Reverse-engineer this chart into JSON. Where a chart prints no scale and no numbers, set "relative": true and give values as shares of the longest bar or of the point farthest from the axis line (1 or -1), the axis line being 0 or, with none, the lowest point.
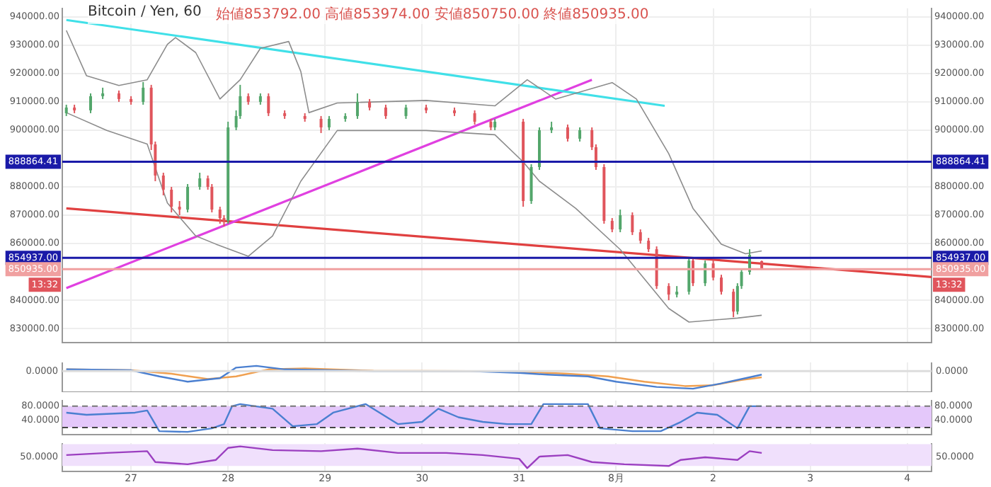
{
  "chart_data": [
    {
      "type": "candlestick",
      "title": "Bitcoin / Yen, 60",
      "subtitle": "始値853792.00 高値853974.00 安値850750.00 終値850935.00",
      "x": [
        "--07-26T08:00",
        "--07-26T10:00",
        "--07-26T14:00",
        "--07-26T17:00",
        "--07-26T21:00",
        "--07-27T00:00",
        "--07-27T03:00",
        "--07-27T05:00",
        "--07-27T06:00",
        "--07-27T08:00",
        "--07-27T10:00",
        "--07-27T12:00",
        "--07-27T14:00",
        "--07-27T17:00",
        "--07-27T19:00",
        "--07-27T20:00",
        "--07-27T22:00",
        "--07-27T23:00",
        "--07-28T00:00",
        "--07-28T02:00",
        "--07-28T03:00",
        "--07-28T05:00",
        "--07-28T08:00",
        "--07-28T10:00",
        "--07-28T14:00",
        "--07-28T19:00",
        "--07-28T23:00",
        "--07-29T01:00",
        "--07-29T05:00",
        "--07-29T08:00",
        "--07-29T11:00",
        "--07-29T15:00",
        "--07-29T20:00",
        "--07-30T01:00",
        "--07-30T08:00",
        "--07-30T13:00",
        "--07-30T17:00",
        "--07-30T18:00",
        "--07-31T01:00",
        "--07-31T03:00",
        "--07-31T05:00",
        "--07-31T08:00",
        "--07-31T12:00",
        "--07-31T15:00",
        "--07-31T18:00",
        "--07-31T19:00",
        "--07-31T21:00",
        "--07-31T23:00",
        "--08-01T01:00",
        "--08-01T04:00",
        "--08-01T06:00",
        "--08-01T08:00",
        "--08-01T10:00",
        "--08-01T13:00",
        "--08-01T15:00",
        "--08-01T18:00",
        "--08-01T19:00",
        "--08-01T22:00",
        "--08-02T00:00",
        "--08-02T02:00",
        "--08-02T05:00",
        "--08-02T06:00",
        "--08-02T07:00",
        "--08-02T09:00",
        "--08-02T12:00"
      ],
      "ohlc": [
        [
          906000,
          909000,
          905000,
          908000
        ],
        [
          908000,
          909000,
          906000,
          907000
        ],
        [
          907000,
          913000,
          906000,
          912000
        ],
        [
          912000,
          915000,
          911000,
          913000
        ],
        [
          913000,
          914000,
          910000,
          911000
        ],
        [
          911000,
          912000,
          909000,
          910000
        ],
        [
          910000,
          917000,
          909000,
          915000
        ],
        [
          915000,
          916000,
          893000,
          895000
        ],
        [
          895000,
          896000,
          882000,
          884000
        ],
        [
          884000,
          885000,
          877000,
          879000
        ],
        [
          879000,
          880000,
          871000,
          873000
        ],
        [
          873000,
          875000,
          870000,
          872000
        ],
        [
          872000,
          881000,
          871000,
          880000
        ],
        [
          880000,
          885000,
          879000,
          883000
        ],
        [
          883000,
          884000,
          879000,
          880000
        ],
        [
          880000,
          881000,
          871000,
          872000
        ],
        [
          872000,
          873000,
          867000,
          869000
        ],
        [
          869000,
          870000,
          866000,
          868000
        ],
        [
          868000,
          903000,
          867000,
          901000
        ],
        [
          901000,
          907000,
          900000,
          905000
        ],
        [
          905000,
          916000,
          904000,
          912000
        ],
        [
          912000,
          913000,
          909000,
          910000
        ],
        [
          910000,
          913000,
          909000,
          912000
        ],
        [
          912000,
          913000,
          905000,
          906000
        ],
        [
          906000,
          907000,
          904000,
          905000
        ],
        [
          905000,
          906000,
          903000,
          904000
        ],
        [
          904000,
          905000,
          899000,
          901000
        ],
        [
          901000,
          905000,
          900000,
          904000
        ],
        [
          904000,
          906000,
          903000,
          905000
        ],
        [
          905000,
          913000,
          904000,
          910000
        ],
        [
          910000,
          911000,
          907000,
          908000
        ],
        [
          908000,
          909000,
          904000,
          905000
        ],
        [
          905000,
          909000,
          904000,
          908000
        ],
        [
          908000,
          909000,
          906000,
          907000
        ],
        [
          907000,
          908000,
          905000,
          906000
        ],
        [
          906000,
          907000,
          902000,
          903000
        ],
        [
          903000,
          904000,
          900000,
          901000
        ],
        [
          901000,
          904000,
          900000,
          903000
        ],
        [
          903000,
          904000,
          873000,
          875000
        ],
        [
          875000,
          888000,
          874000,
          887000
        ],
        [
          887000,
          901000,
          886000,
          900000
        ],
        [
          900000,
          903000,
          899000,
          901000
        ],
        [
          901000,
          902000,
          896000,
          897000
        ],
        [
          897000,
          901000,
          896000,
          900000
        ],
        [
          900000,
          901000,
          893000,
          894000
        ],
        [
          894000,
          895000,
          886000,
          887000
        ],
        [
          887000,
          888000,
          867000,
          868000
        ],
        [
          868000,
          869000,
          864000,
          865000
        ],
        [
          865000,
          872000,
          864000,
          870000
        ],
        [
          870000,
          871000,
          863000,
          864000
        ],
        [
          864000,
          865000,
          860000,
          861000
        ],
        [
          861000,
          862000,
          857000,
          858000
        ],
        [
          858000,
          859000,
          844000,
          845000
        ],
        [
          845000,
          846000,
          840000,
          842000
        ],
        [
          842000,
          845000,
          841000,
          843000
        ],
        [
          843000,
          855000,
          842000,
          854000
        ],
        [
          854000,
          855000,
          845000,
          846000
        ],
        [
          846000,
          854000,
          845000,
          853000
        ],
        [
          853000,
          854000,
          847000,
          848000
        ],
        [
          848000,
          849000,
          842000,
          843000
        ],
        [
          843000,
          844000,
          834000,
          836000
        ],
        [
          836000,
          846000,
          835000,
          845000
        ],
        [
          845000,
          851000,
          844000,
          850000
        ],
        [
          850000,
          858000,
          849000,
          856000
        ],
        [
          853792,
          853974,
          850750,
          850935
        ]
      ],
      "series": [
        {
          "type": "line",
          "color": "#8c8c8c",
          "x": [
            "--07-26T08:00",
            "--07-26T13:00",
            "--07-26T21:00",
            "--07-27T04:00",
            "--07-27T09:00",
            "--07-27T11:00",
            "--07-27T16:00",
            "--07-27T22:00",
            "--07-28T03:00",
            "--07-28T08:00",
            "--07-28T15:00",
            "--07-28T18:00",
            "--07-28T20:00",
            "--07-29T03:00",
            "--07-30T01:00",
            "--07-30T18:00",
            "--07-31T02:00",
            "--07-31T09:00",
            "--07-31T23:00",
            "--08-01T05:00",
            "--08-01T13:00",
            "--08-01T19:00",
            "--08-02T02:00",
            "--08-02T08:00",
            "--08-02T12:00"
          ],
          "values": [
            935200,
            919200,
            915800,
            917800,
            930300,
            932700,
            927400,
            911000,
            917800,
            928900,
            931300,
            920700,
            906200,
            909600,
            910500,
            908600,
            917800,
            911000,
            916800,
            911000,
            891700,
            872400,
            859800,
            856400,
            857400
          ]
        },
        {
          "type": "line",
          "color": "#8c8c8c",
          "x": [
            "--07-26T08:00",
            "--07-26T18:00",
            "--07-27T04:00",
            "--07-27T09:00",
            "--07-27T16:00",
            "--07-27T21:00",
            "--07-28T05:00",
            "--07-28T11:00",
            "--07-28T18:00",
            "--07-29T03:00",
            "--07-30T01:00",
            "--07-30T18:00",
            "--07-31T01:00",
            "--07-31T05:00",
            "--07-31T14:00",
            "--08-01T01:00",
            "--08-01T13:00",
            "--08-01T18:00",
            "--08-02T06:00",
            "--08-02T12:00"
          ],
          "values": [
            906200,
            899900,
            895100,
            874300,
            862700,
            859800,
            855500,
            862700,
            882000,
            899900,
            899900,
            898400,
            888800,
            882000,
            872400,
            857900,
            837100,
            832300,
            833700,
            834700
          ]
        },
        {
          "type": "line",
          "color": "#40e0e8",
          "x": [
            "--07-26T08:00",
            "--08-01T12:00"
          ],
          "values": [
            938900,
            908600
          ]
        },
        {
          "type": "line",
          "color": "#e040e0",
          "x": [
            "--07-26T08:00",
            "--07-31T18:00"
          ],
          "values": [
            844300,
            917800
          ]
        },
        {
          "type": "line",
          "color": "#e04040",
          "x": [
            "--07-26T08:00",
            "--08-04T06:00"
          ],
          "values": [
            872400,
            848200
          ]
        }
      ],
      "xlim": [
        "--07-26T07:00",
        "--08-04T06:00"
      ],
      "xticks": [
        {
          "value": "--07-27",
          "label": "27"
        },
        {
          "value": "--07-28",
          "label": "28"
        },
        {
          "value": "--07-29",
          "label": "29"
        },
        {
          "value": "--07-30",
          "label": "30"
        },
        {
          "value": "--07-31",
          "label": "31"
        },
        {
          "value": "--08-01",
          "label": "8月"
        },
        {
          "value": "--08-02",
          "label": "2"
        },
        {
          "value": "--08-03",
          "label": "3"
        },
        {
          "value": "--08-04",
          "label": "4"
        }
      ],
      "ylim": [
        825000,
        943000
      ],
      "yticks": [
        {
          "value": 830000,
          "label": "830000.00"
        },
        {
          "value": 840000,
          "label": "840000.00"
        },
        {
          "value": 860000,
          "label": "860000.00"
        },
        {
          "value": 870000,
          "label": "870000.00"
        },
        {
          "value": 880000,
          "label": "880000.00"
        },
        {
          "value": 900000,
          "label": "900000.00"
        },
        {
          "value": 910000,
          "label": "910000.00"
        },
        {
          "value": 920000,
          "label": "920000.00"
        },
        {
          "value": 930000,
          "label": "930000.00"
        },
        {
          "value": 940000,
          "label": "940000.00"
        }
      ],
      "y2lim": [
        825000,
        943000
      ],
      "y2ticks": [
        {
          "value": 830000,
          "label": "830000.00"
        },
        {
          "value": 840000,
          "label": "840000.00"
        },
        {
          "value": 860000,
          "label": "860000.00"
        },
        {
          "value": 870000,
          "label": "870000.00"
        },
        {
          "value": 880000,
          "label": "880000.00"
        },
        {
          "value": 900000,
          "label": "900000.00"
        },
        {
          "value": 910000,
          "label": "910000.00"
        },
        {
          "value": 920000,
          "label": "920000.00"
        },
        {
          "value": 930000,
          "label": "930000.00"
        },
        {
          "value": 940000,
          "label": "940000.00"
        }
      ],
      "ref_lines": [
        {
          "axis": "y",
          "value": 888864.41,
          "label": "888864.41",
          "color": "#1a1aa8"
        },
        {
          "axis": "y",
          "value": 854937.0,
          "label": "854937.00",
          "color": "#1a1aa8"
        },
        {
          "axis": "y",
          "value": 850935.0,
          "label": "850935.00",
          "color": "#f0a0a0"
        }
      ],
      "annotations": [
        "13:32"
      ],
      "grid": true,
      "tick_labels": "y"
    },
    {
      "type": "line",
      "relative": true,
      "series": [
        {
          "color": "#4a7fd0",
          "x": [
            "--07-26T08:00",
            "--07-27T00:00",
            "--07-27T07:00",
            "--07-27T14:00",
            "--07-27T22:00",
            "--07-28T02:00",
            "--07-28T07:00",
            "--07-28T14:00",
            "--07-29T12:00",
            "--07-30T12:00",
            "--07-31T00:00",
            "--07-31T07:00",
            "--07-31T17:00",
            "--08-01T00:00",
            "--08-01T10:00",
            "--08-01T19:00",
            "--08-02T02:00",
            "--08-02T10:00",
            "--08-02T12:00"
          ],
          "values": [
            0.1,
            0.05,
            -0.3,
            -0.6,
            -0.4,
            0.2,
            0.3,
            0.1,
            0,
            0,
            -0.1,
            -0.2,
            -0.3,
            -0.6,
            -0.9,
            -1,
            -0.7,
            -0.3,
            -0.2
          ]
        },
        {
          "color": "#f0a050",
          "x": [
            "--07-26T08:00",
            "--07-27T00:00",
            "--07-27T10:00",
            "--07-27T19:00",
            "--07-28T02:00",
            "--07-28T10:00",
            "--07-28T19:00",
            "--07-29T12:00",
            "--07-30T12:00",
            "--07-31T02:00",
            "--07-31T12:00",
            "--07-31T22:00",
            "--08-01T07:00",
            "--08-01T17:00",
            "--08-02T00:00",
            "--08-02T07:00",
            "--08-02T12:00"
          ],
          "values": [
            0.1,
            0.05,
            -0.15,
            -0.45,
            -0.3,
            0.1,
            0.15,
            0.02,
            0,
            -0.05,
            -0.15,
            -0.3,
            -0.6,
            -0.85,
            -0.8,
            -0.5,
            -0.35
          ]
        }
      ],
      "xlim": [
        "--07-26T07:00",
        "--08-04T06:00"
      ],
      "xticks": [
        {
          "value": "--07-27",
          "label": "27"
        },
        {
          "value": "--07-28",
          "label": "28"
        },
        {
          "value": "--07-29",
          "label": "29"
        },
        {
          "value": "--07-30",
          "label": "30"
        },
        {
          "value": "--07-31",
          "label": "31"
        },
        {
          "value": "--08-01",
          "label": "8月"
        },
        {
          "value": "--08-02",
          "label": "2"
        },
        {
          "value": "--08-03",
          "label": "3"
        },
        {
          "value": "--08-04",
          "label": "4"
        }
      ],
      "ref_lines": [
        {
          "axis": "y",
          "value": 0,
          "label": "0.0000",
          "color": "#dddddd"
        }
      ],
      "grid": "x",
      "tick_labels": false
    },
    {
      "type": "line",
      "series": [
        {
          "color": "#4a7fd0",
          "x": [
            "--07-26T08:00",
            "--07-26T13:00",
            "--07-26T19:00",
            "--07-27T01:00",
            "--07-27T04:00",
            "--07-27T07:00",
            "--07-27T14:00",
            "--07-27T20:00",
            "--07-27T23:00",
            "--07-28T01:00",
            "--07-28T03:00",
            "--07-28T11:00",
            "--07-28T16:00",
            "--07-28T22:00",
            "--07-29T02:00",
            "--07-29T10:00",
            "--07-29T18:00",
            "--07-30T00:00",
            "--07-30T04:00",
            "--07-30T09:00",
            "--07-30T15:00",
            "--07-30T21:00",
            "--07-31T03:00",
            "--07-31T06:00",
            "--07-31T12:00",
            "--07-31T17:00",
            "--07-31T20:00",
            "--08-01T04:00",
            "--08-01T11:00",
            "--08-01T16:00",
            "--08-01T20:00",
            "--08-02T01:00",
            "--08-02T06:00",
            "--08-02T09:00",
            "--08-02T12:00"
          ],
          "values": [
            62,
            56,
            59,
            62,
            68,
            10,
            8,
            18,
            30,
            80,
            86,
            73,
            24,
            30,
            62,
            86,
            30,
            36,
            73,
            49,
            36,
            30,
            30,
            86,
            86,
            86,
            18,
            10,
            10,
            36,
            62,
            56,
            18,
            80,
            80
          ]
        }
      ],
      "xlim": [
        "--07-26T07:00",
        "--08-04T06:00"
      ],
      "xticks": [
        {
          "value": "--07-27",
          "label": "27"
        },
        {
          "value": "--07-28",
          "label": "28"
        },
        {
          "value": "--07-29",
          "label": "29"
        },
        {
          "value": "--07-30",
          "label": "30"
        },
        {
          "value": "--07-31",
          "label": "31"
        },
        {
          "value": "--08-01",
          "label": "8月"
        },
        {
          "value": "--08-02",
          "label": "2"
        },
        {
          "value": "--08-03",
          "label": "3"
        },
        {
          "value": "--08-04",
          "label": "4"
        }
      ],
      "ylim": [
        0,
        96
      ],
      "yticks": [
        {
          "value": 40,
          "label": "40.0000"
        },
        {
          "value": 80,
          "label": "80.0000"
        }
      ],
      "y2lim": [
        0,
        96
      ],
      "y2ticks": [
        {
          "value": 40,
          "label": "40.0000"
        },
        {
          "value": 80,
          "label": "80.0000"
        }
      ],
      "bands": [
        {
          "axis": "y",
          "from": 20,
          "to": 80,
          "color": "#e4c8fa"
        }
      ],
      "ref_lines": [
        {
          "axis": "y",
          "value": 80,
          "color": "#777777",
          "line_style": "dashed"
        },
        {
          "axis": "y",
          "value": 20,
          "color": "#444444",
          "line_style": "dashed"
        }
      ],
      "grid": "x",
      "tick_labels": "y"
    },
    {
      "type": "line",
      "relative": true,
      "series": [
        {
          "color": "#9b3fc0",
          "x": [
            "--07-26T08:00",
            "--07-26T18:00",
            "--07-27T04:00",
            "--07-27T06:00",
            "--07-27T14:00",
            "--07-27T21:00",
            "--07-28T00:00",
            "--07-28T03:00",
            "--07-28T11:00",
            "--07-28T23:00",
            "--07-29T08:00",
            "--07-29T18:00",
            "--07-30T06:00",
            "--07-30T15:00",
            "--07-31T00:00",
            "--07-31T02:00",
            "--07-31T05:00",
            "--07-31T12:00",
            "--07-31T18:00",
            "--08-01T02:00",
            "--08-01T13:00",
            "--08-01T16:00",
            "--08-01T22:00",
            "--08-02T06:00",
            "--08-02T09:00",
            "--08-02T12:00"
          ],
          "values": [
            0.6,
            0.7,
            0.78,
            0.28,
            0.18,
            0.38,
            0.93,
            1,
            0.83,
            0.78,
            0.9,
            0.7,
            0.7,
            0.6,
            0.43,
            0,
            0.53,
            0.6,
            0.28,
            0.18,
            0.1,
            0.38,
            0.5,
            0.38,
            0.78,
            0.7
          ]
        }
      ],
      "xlim": [
        "--07-26T07:00",
        "--08-04T06:00"
      ],
      "xticks": [
        {
          "value": "--07-27",
          "label": "27"
        },
        {
          "value": "--07-28",
          "label": "28"
        },
        {
          "value": "--07-29",
          "label": "29"
        },
        {
          "value": "--07-30",
          "label": "30"
        },
        {
          "value": "--07-31",
          "label": "31"
        },
        {
          "value": "--08-01",
          "label": "8月"
        },
        {
          "value": "--08-02",
          "label": "2"
        },
        {
          "value": "--08-03",
          "label": "3"
        },
        {
          "value": "--08-04",
          "label": "4"
        }
      ],
      "bands": [
        {
          "axis": "y",
          "from": 0.1,
          "to": 1.1,
          "color": "#f0e0fc"
        }
      ],
      "annotations": [
        "50.0000"
      ],
      "grid": "x",
      "tick_labels": "x"
    }
  ]
}
